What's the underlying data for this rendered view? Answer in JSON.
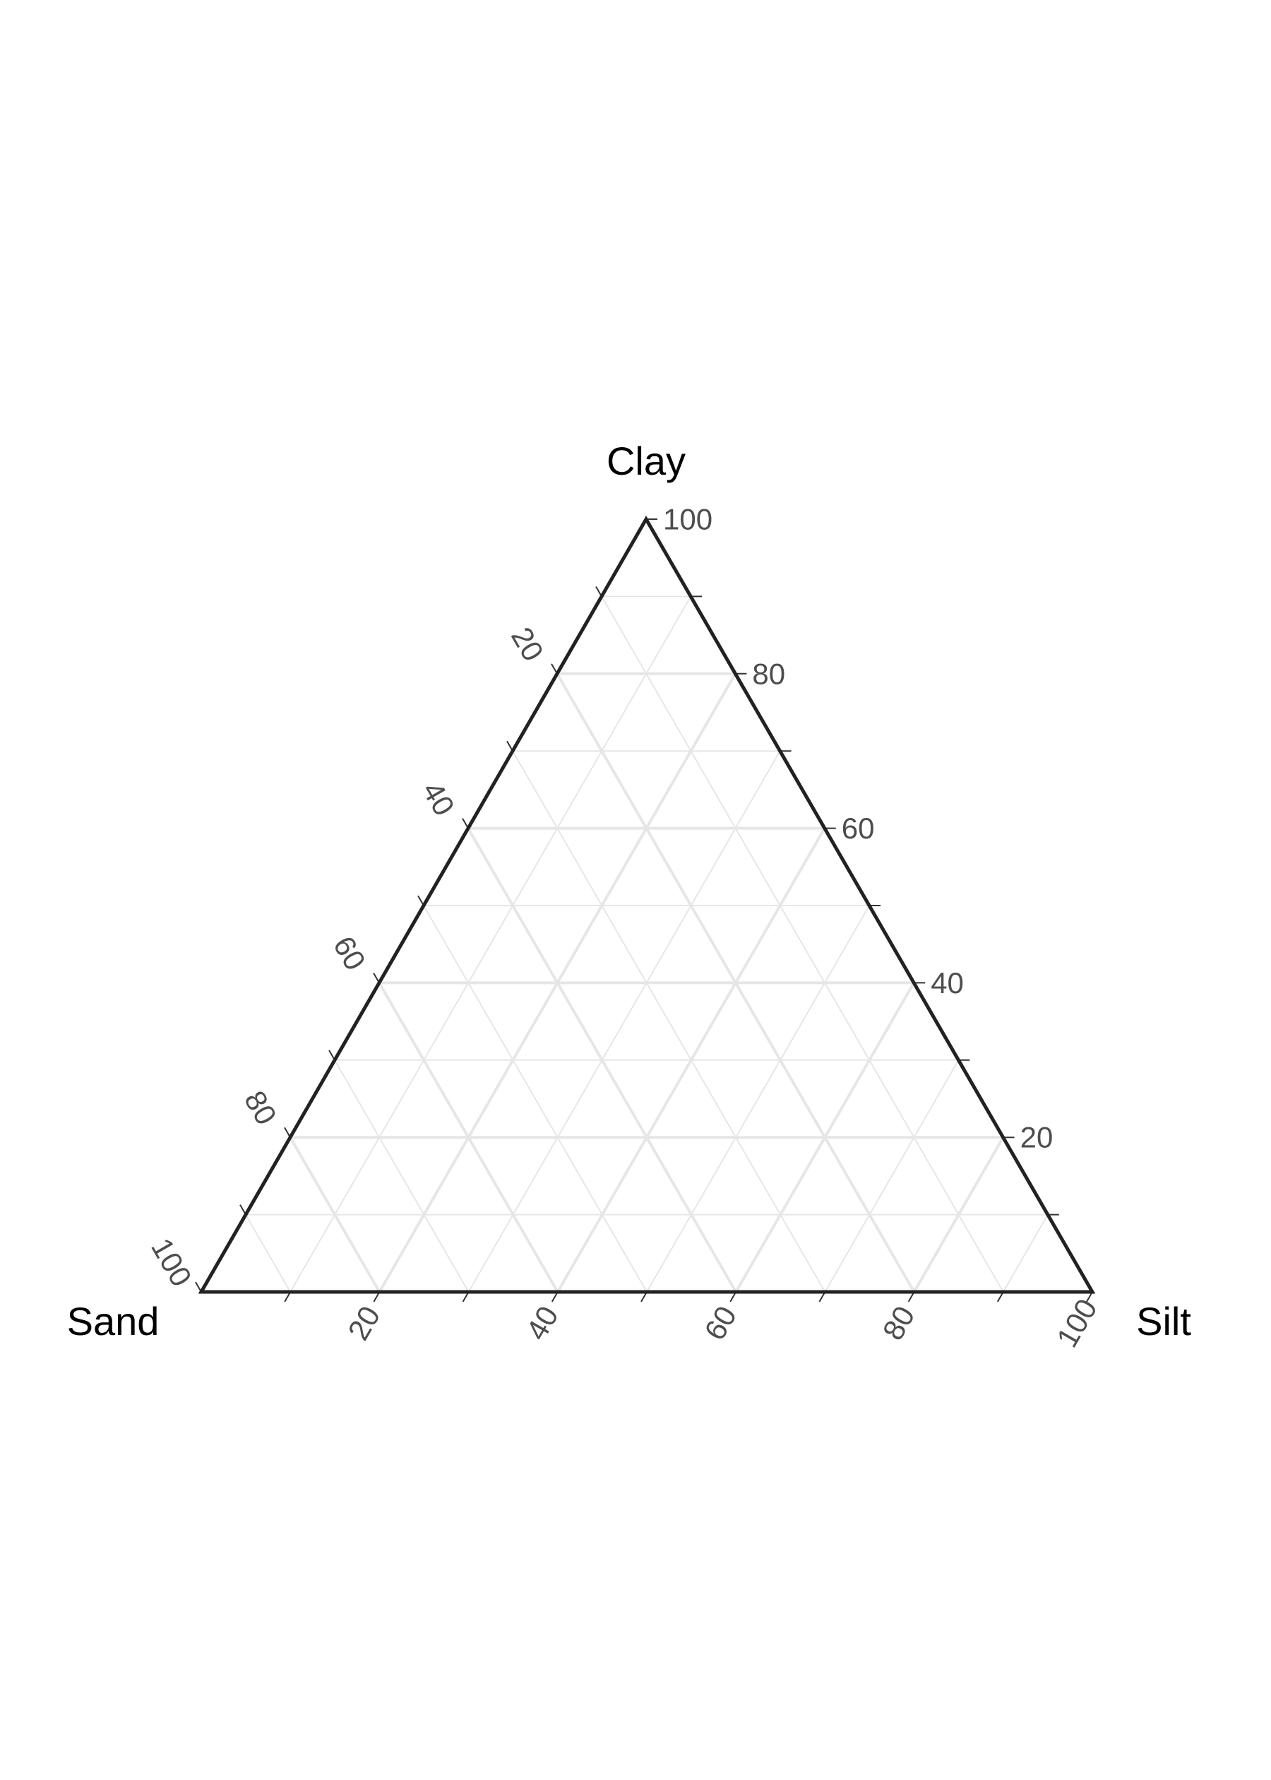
{
  "chart_data": {
    "type": "ternary",
    "title": "",
    "axes": {
      "top": {
        "name": "Clay",
        "range": [
          0,
          100
        ]
      },
      "left": {
        "name": "Sand",
        "range": [
          0,
          100
        ]
      },
      "right": {
        "name": "Silt",
        "range": [
          0,
          100
        ]
      }
    },
    "ticks": {
      "clay": [
        "20",
        "40",
        "60",
        "80",
        "100"
      ],
      "sand": [
        "20",
        "40",
        "60",
        "80",
        "100"
      ],
      "silt": [
        "20",
        "40",
        "60",
        "80",
        "100"
      ]
    },
    "major_step": 20,
    "minor_step": 10,
    "grid": true,
    "series": []
  }
}
